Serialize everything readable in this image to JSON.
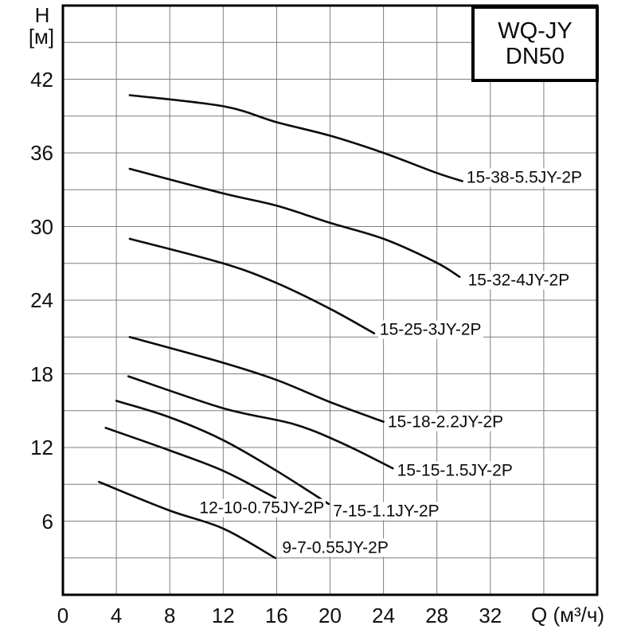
{
  "legend": {
    "line1": "WQ-JY",
    "line2": "DN50"
  },
  "chart_data": {
    "type": "line",
    "title": "WQ-JY DN50",
    "xlabel": "Q (м³/ч)",
    "ylabel": "H [м]",
    "ylabel_lines": [
      "H",
      "[м]"
    ],
    "xlim": [
      0,
      40
    ],
    "ylim": [
      0,
      48
    ],
    "x_ticks": [
      0,
      4,
      8,
      12,
      16,
      20,
      24,
      28,
      32
    ],
    "y_ticks": [
      6,
      12,
      18,
      24,
      30,
      36,
      42
    ],
    "grid": true,
    "grid_step_x": 4,
    "grid_step_y": 3,
    "legend_position": "top-right",
    "series": [
      {
        "name": "15-38-5.5JY-2P",
        "points": [
          [
            5,
            40.7
          ],
          [
            12,
            39.8
          ],
          [
            16,
            38.5
          ],
          [
            20,
            37.4
          ],
          [
            24,
            36.0
          ],
          [
            27.9,
            34.4
          ],
          [
            29.9,
            33.7
          ]
        ],
        "label_q": 30.1,
        "label_h": 34.0
      },
      {
        "name": "15-32-4JY-2P",
        "points": [
          [
            5,
            34.7
          ],
          [
            12,
            32.7
          ],
          [
            16,
            31.7
          ],
          [
            20,
            30.3
          ],
          [
            24,
            29.0
          ],
          [
            27.9,
            27.1
          ],
          [
            29.7,
            25.9
          ]
        ],
        "label_q": 30.2,
        "label_h": 25.6
      },
      {
        "name": "15-25-3JY-2P",
        "points": [
          [
            5,
            29.0
          ],
          [
            12,
            27.0
          ],
          [
            16,
            25.4
          ],
          [
            20,
            23.3
          ],
          [
            23.3,
            21.3
          ]
        ],
        "label_q": 23.6,
        "label_h": 21.6
      },
      {
        "name": "15-18-2.2JY-2P",
        "points": [
          [
            5,
            21.0
          ],
          [
            12,
            18.9
          ],
          [
            16,
            17.5
          ],
          [
            20,
            15.7
          ],
          [
            24,
            14.1
          ]
        ],
        "label_q": 24.2,
        "label_h": 14.1
      },
      {
        "name": "15-15-1.5JY-2P",
        "points": [
          [
            4.9,
            17.8
          ],
          [
            12,
            15.2
          ],
          [
            17.3,
            13.9
          ],
          [
            21,
            12.3
          ],
          [
            24.7,
            10.3
          ]
        ],
        "label_q": 24.9,
        "label_h": 10.1
      },
      {
        "name": "7-15-1.1JY-2P",
        "points": [
          [
            4,
            15.8
          ],
          [
            7.9,
            14.5
          ],
          [
            12,
            12.6
          ],
          [
            16,
            10.1
          ],
          [
            19.9,
            7.4
          ]
        ],
        "label_q": 20.1,
        "label_h": 6.8
      },
      {
        "name": "12-10-0.75JY-2P",
        "points": [
          [
            3.2,
            13.6
          ],
          [
            7.9,
            11.8
          ],
          [
            12,
            10.1
          ],
          [
            15.9,
            7.9
          ]
        ],
        "label_q": 10.1,
        "label_h": 7.1
      },
      {
        "name": "9-7-0.55JY-2P",
        "points": [
          [
            2.7,
            9.2
          ],
          [
            7.9,
            6.9
          ],
          [
            12,
            5.4
          ],
          [
            15.9,
            3.0
          ]
        ],
        "label_q": 16.3,
        "label_h": 3.8
      }
    ]
  }
}
